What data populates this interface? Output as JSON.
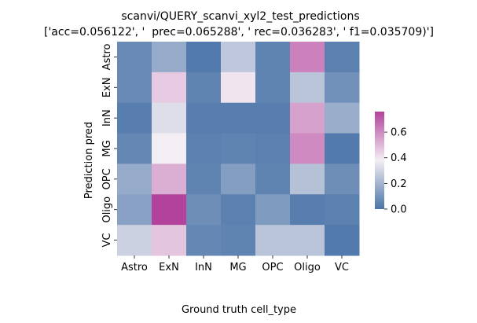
{
  "chart_data": {
    "type": "heatmap",
    "title": "scanvi/QUERY_scanvi_xyl2_test_predictions",
    "subtitle": "['acc=0.056122', '  prec=0.065288', ' rec=0.036283', ' f1=0.035709)']",
    "xlabel": "Ground truth cell_type",
    "ylabel": "Prediction pred",
    "x_categories": [
      "Astro",
      "ExN",
      "InN",
      "MG",
      "OPC",
      "Oligo",
      "VC"
    ],
    "y_categories": [
      "Astro",
      "ExN",
      "InN",
      "MG",
      "OPC",
      "Oligo",
      "VC"
    ],
    "values": [
      [
        0.07,
        0.17,
        0.02,
        0.26,
        0.05,
        0.62,
        0.04
      ],
      [
        0.07,
        0.46,
        0.05,
        0.4,
        0.05,
        0.25,
        0.09
      ],
      [
        0.03,
        0.33,
        0.03,
        0.03,
        0.03,
        0.55,
        0.18
      ],
      [
        0.06,
        0.38,
        0.04,
        0.05,
        0.04,
        0.6,
        0.02
      ],
      [
        0.17,
        0.52,
        0.05,
        0.13,
        0.05,
        0.24,
        0.08
      ],
      [
        0.14,
        0.76,
        0.08,
        0.04,
        0.12,
        0.03,
        0.04
      ],
      [
        0.29,
        0.47,
        0.06,
        0.05,
        0.25,
        0.25,
        0.02
      ]
    ],
    "colorbar": {
      "range": [
        0.0,
        0.76
      ],
      "ticks": [
        "0.0",
        "0.2",
        "0.4",
        "0.6"
      ],
      "tick_values": [
        0.0,
        0.2,
        0.4,
        0.6
      ],
      "colormap": [
        "#4a74a8",
        "#f3eef3",
        "#b3429c"
      ]
    },
    "grid": false
  }
}
